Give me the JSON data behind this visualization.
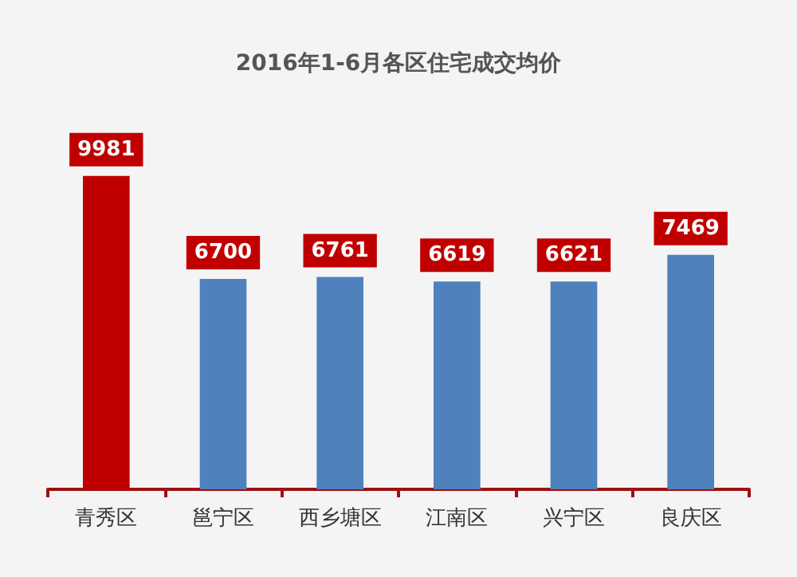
{
  "chart_data": {
    "type": "bar",
    "title": "2016年1-6月各区住宅成交均价",
    "categories": [
      "青秀区",
      "邕宁区",
      "西乡塘区",
      "江南区",
      "兴宁区",
      "良庆区"
    ],
    "values": [
      9981,
      6700,
      6761,
      6619,
      6621,
      7469
    ],
    "colors": [
      "#c00000",
      "#4f81bd",
      "#4f81bd",
      "#4f81bd",
      "#4f81bd",
      "#4f81bd"
    ],
    "data_labels": true
  }
}
